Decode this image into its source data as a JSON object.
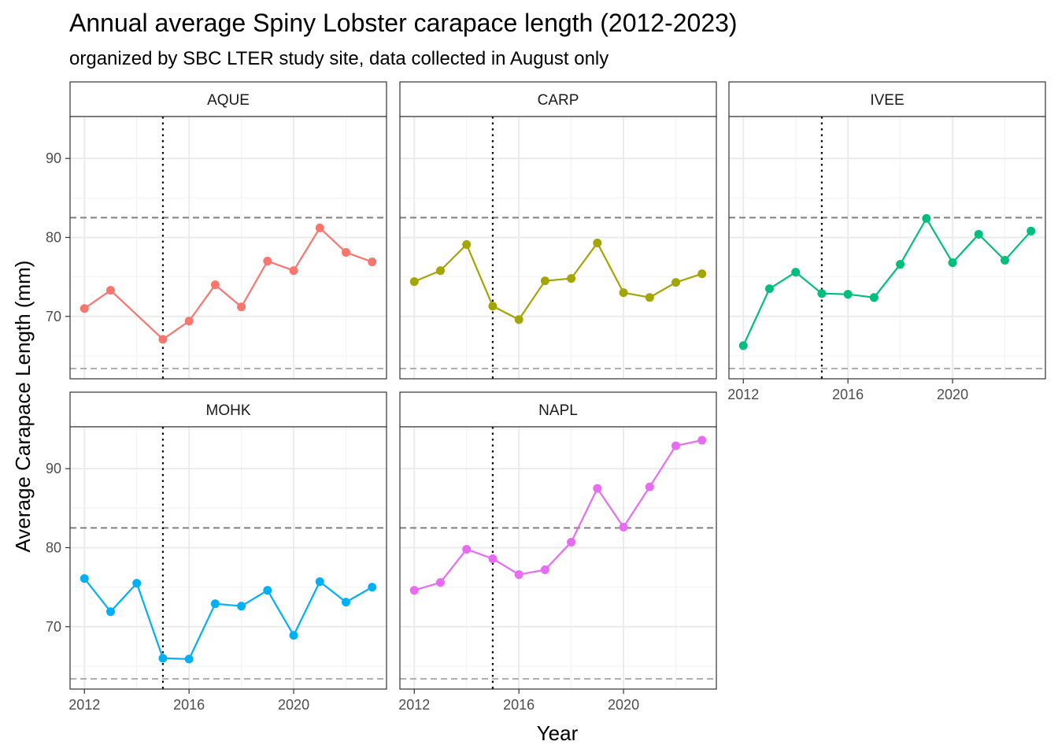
{
  "chart_data": {
    "type": "line",
    "title": "Annual average Spiny Lobster carapace length (2012-2023)",
    "subtitle": "organized by SBC LTER study site, data collected in August only",
    "xlabel": "Year",
    "ylabel": "Average Carapace Length (mm)",
    "x": [
      2012,
      2013,
      2014,
      2015,
      2016,
      2017,
      2018,
      2019,
      2020,
      2021,
      2022,
      2023
    ],
    "xticks": [
      2012,
      2016,
      2020
    ],
    "yticks": [
      70,
      80,
      90
    ],
    "xlim": [
      2011.45,
      2023.55
    ],
    "ylim": [
      62.1,
      95.3
    ],
    "grid": true,
    "reference_lines": {
      "vertical_dotted_x": 2015,
      "upper_dashed_y": 82.5,
      "lower_dashed_y": 63.4
    },
    "series": [
      {
        "name": "AQUE",
        "color": "#F8766D",
        "values": [
          71.0,
          73.3,
          null,
          67.1,
          69.4,
          74.0,
          71.2,
          77.0,
          75.8,
          81.2,
          78.1,
          76.9
        ]
      },
      {
        "name": "CARP",
        "color": "#A3A500",
        "values": [
          74.4,
          75.8,
          79.1,
          71.3,
          69.6,
          74.5,
          74.8,
          79.3,
          73.0,
          72.4,
          74.3,
          75.4
        ]
      },
      {
        "name": "IVEE",
        "color": "#00BF7D",
        "values": [
          66.3,
          73.5,
          75.6,
          72.9,
          72.8,
          72.4,
          76.6,
          82.4,
          76.8,
          80.4,
          77.1,
          80.8
        ]
      },
      {
        "name": "MOHK",
        "color": "#00B0F6",
        "values": [
          76.1,
          71.9,
          75.5,
          66.0,
          65.9,
          72.9,
          72.6,
          74.6,
          68.9,
          75.7,
          73.1,
          75.0
        ]
      },
      {
        "name": "NAPL",
        "color": "#E76BF3",
        "values": [
          74.6,
          75.6,
          79.8,
          78.6,
          76.6,
          77.2,
          80.7,
          87.5,
          82.6,
          87.7,
          92.9,
          93.6
        ]
      }
    ],
    "colors": {
      "panel_border": "#333333",
      "strip_fill": "#ffffff",
      "major_grid": "#ebebeb",
      "minor_grid": "#f2f2f2",
      "vline": "#000000",
      "upper_dashed": "#808080",
      "lower_dashed": "#b0b0b0"
    }
  }
}
